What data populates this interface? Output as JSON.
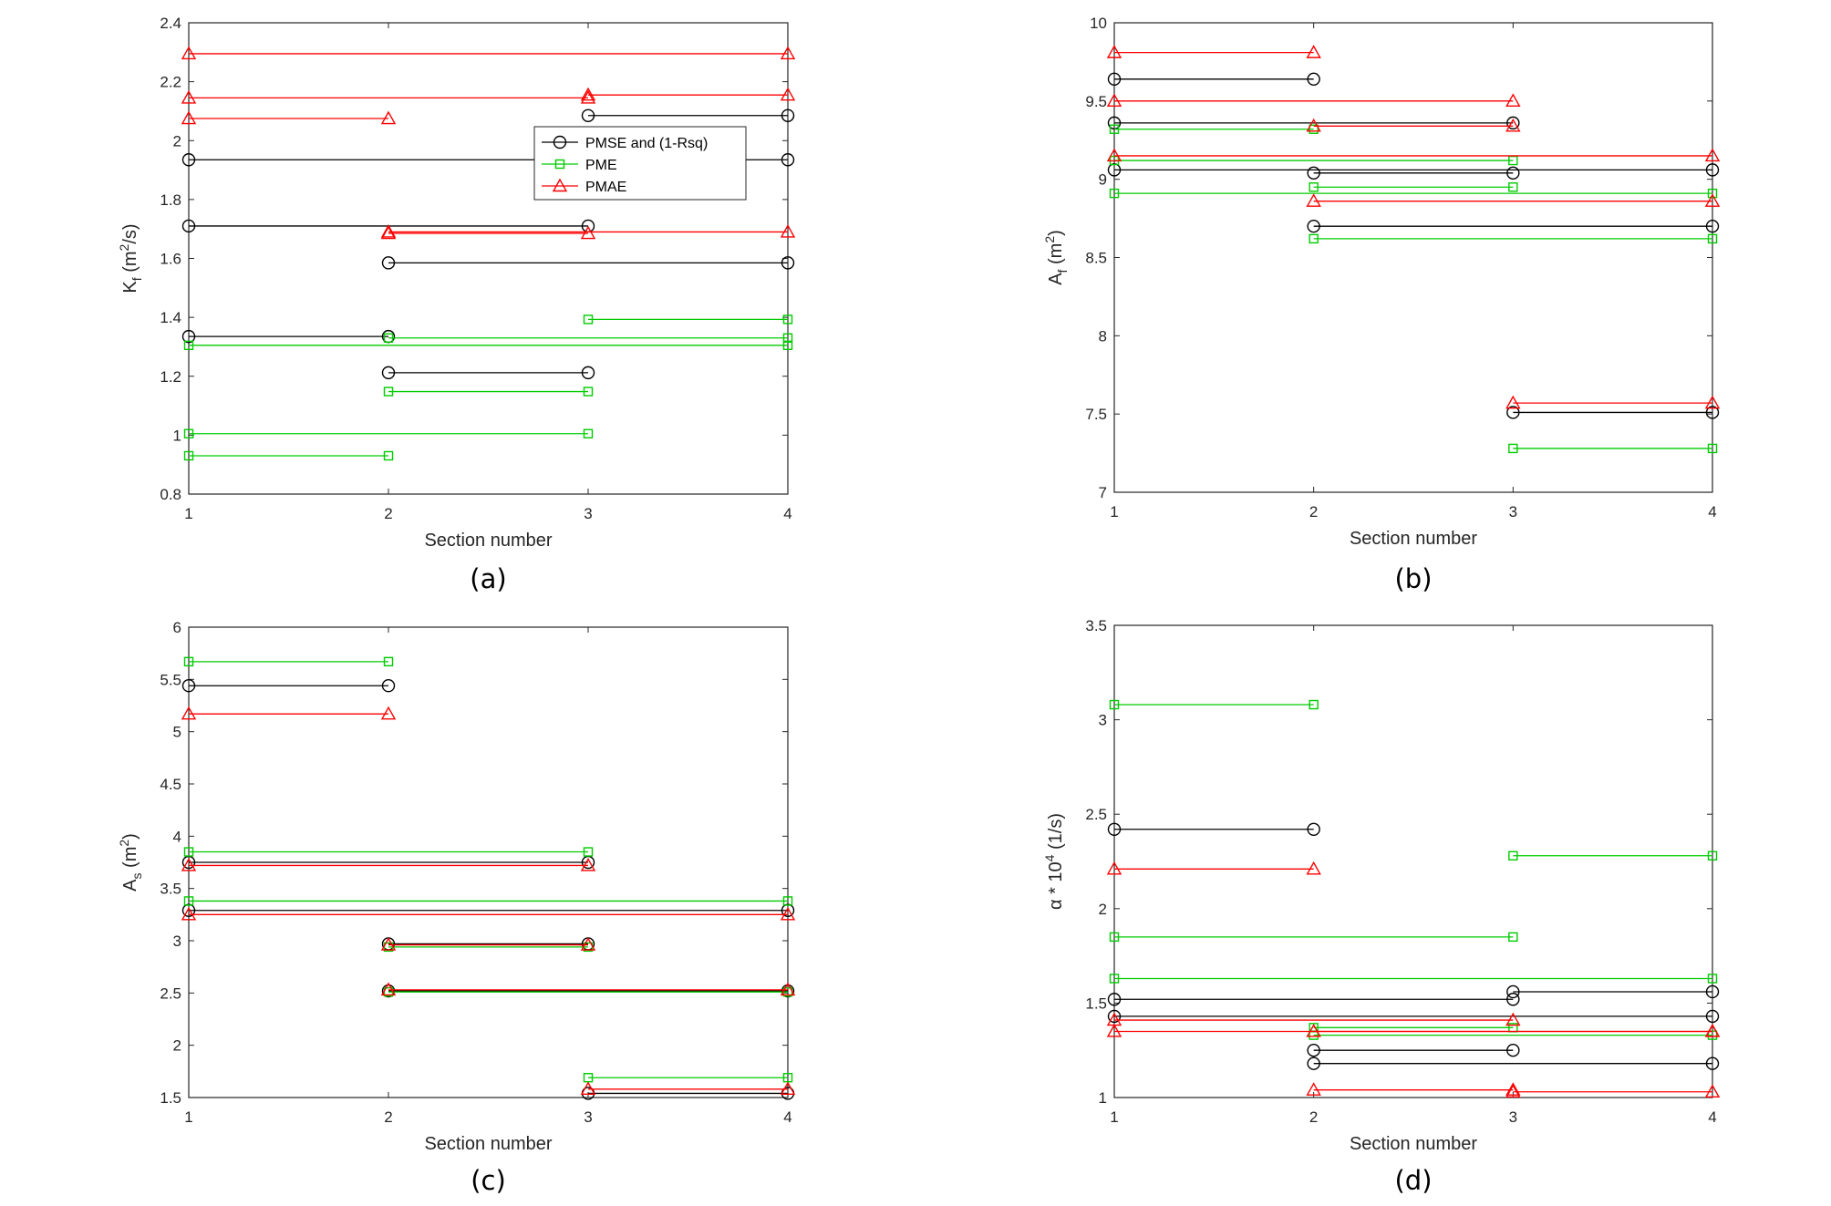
{
  "chart_data": [
    {
      "type": "line",
      "panel": "a",
      "caption": "(a)",
      "xlabel": "Section number",
      "ylabel": "K_f (m^2/s)",
      "ylabel_base": "K",
      "ylabel_sub": "f",
      "ylabel_mid": " (m",
      "ylabel_sup": "2",
      "ylabel_tail": "/s)",
      "xlim": [
        1,
        4
      ],
      "ylim": [
        0.8,
        2.4
      ],
      "xticks": [
        "1",
        "2",
        "3",
        "4"
      ],
      "yticks": [
        "0.8",
        "1",
        "1.2",
        "1.4",
        "1.6",
        "1.8",
        "2",
        "2.2",
        "2.4"
      ],
      "legend": [
        {
          "name": "PMSE and (1-Rsq)",
          "marker": "circle",
          "color": "#000000"
        },
        {
          "name": "PME",
          "marker": "square",
          "color": "#00cc00"
        },
        {
          "name": "PMAE",
          "marker": "triangle",
          "color": "#ff0000"
        }
      ],
      "series": [
        {
          "name": "PMSE and (1-Rsq)",
          "color": "#000000",
          "marker": "circle",
          "segments": [
            [
              1,
              4,
              1.935
            ],
            [
              1,
              3,
              1.71
            ],
            [
              1,
              2,
              1.335
            ],
            [
              2,
              4,
              1.585
            ],
            [
              2,
              3,
              1.212
            ],
            [
              3,
              4,
              2.085
            ]
          ]
        },
        {
          "name": "PME",
          "color": "#00cc00",
          "marker": "square",
          "segments": [
            [
              1,
              4,
              1.305
            ],
            [
              1,
              3,
              1.005
            ],
            [
              1,
              2,
              0.93
            ],
            [
              2,
              4,
              1.33
            ],
            [
              2,
              3,
              1.148
            ],
            [
              3,
              4,
              1.393
            ]
          ]
        },
        {
          "name": "PMAE",
          "color": "#ff0000",
          "marker": "triangle",
          "segments": [
            [
              1,
              4,
              2.295
            ],
            [
              1,
              3,
              2.145
            ],
            [
              1,
              2,
              2.075
            ],
            [
              2,
              4,
              1.69
            ],
            [
              2,
              3,
              1.685
            ],
            [
              3,
              4,
              2.155
            ]
          ]
        }
      ]
    },
    {
      "type": "line",
      "panel": "b",
      "caption": "(b)",
      "xlabel": "Section number",
      "ylabel": "A_f (m^2)",
      "ylabel_base": "A",
      "ylabel_sub": "f",
      "ylabel_mid": " (m",
      "ylabel_sup": "2",
      "ylabel_tail": ")",
      "xlim": [
        1,
        4
      ],
      "ylim": [
        7,
        10
      ],
      "xticks": [
        "1",
        "2",
        "3",
        "4"
      ],
      "yticks": [
        "7",
        "7.5",
        "8",
        "8.5",
        "9",
        "9.5",
        "10"
      ],
      "series": [
        {
          "name": "PMSE and (1-Rsq)",
          "color": "#000000",
          "marker": "circle",
          "segments": [
            [
              1,
              2,
              9.64
            ],
            [
              1,
              3,
              9.36
            ],
            [
              1,
              4,
              9.06
            ],
            [
              2,
              3,
              9.04
            ],
            [
              2,
              4,
              8.7
            ],
            [
              3,
              4,
              7.51
            ]
          ]
        },
        {
          "name": "PME",
          "color": "#00cc00",
          "marker": "square",
          "segments": [
            [
              1,
              2,
              9.32
            ],
            [
              1,
              4,
              8.91
            ],
            [
              1,
              3,
              9.12
            ],
            [
              2,
              3,
              8.95
            ],
            [
              2,
              4,
              8.62
            ],
            [
              3,
              4,
              7.28
            ]
          ]
        },
        {
          "name": "PMAE",
          "color": "#ff0000",
          "marker": "triangle",
          "segments": [
            [
              1,
              2,
              9.81
            ],
            [
              1,
              3,
              9.5
            ],
            [
              1,
              4,
              9.15
            ],
            [
              2,
              3,
              9.34
            ],
            [
              2,
              4,
              8.86
            ],
            [
              3,
              4,
              7.57
            ]
          ]
        }
      ]
    },
    {
      "type": "line",
      "panel": "c",
      "caption": "(c)",
      "xlabel": "Section number",
      "ylabel": "A_s (m^2)",
      "ylabel_base": "A",
      "ylabel_sub": "s",
      "ylabel_mid": " (m",
      "ylabel_sup": "2",
      "ylabel_tail": ")",
      "xlim": [
        1,
        4
      ],
      "ylim": [
        1.5,
        6
      ],
      "xticks": [
        "1",
        "2",
        "3",
        "4"
      ],
      "yticks": [
        "1.5",
        "2",
        "2.5",
        "3",
        "3.5",
        "4",
        "4.5",
        "5",
        "5.5",
        "6"
      ],
      "series": [
        {
          "name": "PMSE and (1-Rsq)",
          "color": "#000000",
          "marker": "circle",
          "segments": [
            [
              1,
              2,
              5.44
            ],
            [
              1,
              3,
              3.75
            ],
            [
              1,
              4,
              3.29
            ],
            [
              2,
              3,
              2.97
            ],
            [
              2,
              4,
              2.52
            ],
            [
              3,
              4,
              1.54
            ]
          ]
        },
        {
          "name": "PME",
          "color": "#00cc00",
          "marker": "square",
          "segments": [
            [
              1,
              2,
              5.67
            ],
            [
              1,
              3,
              3.85
            ],
            [
              1,
              4,
              3.38
            ],
            [
              2,
              3,
              2.94
            ],
            [
              2,
              4,
              2.51
            ],
            [
              3,
              4,
              1.69
            ]
          ]
        },
        {
          "name": "PMAE",
          "color": "#ff0000",
          "marker": "triangle",
          "segments": [
            [
              1,
              2,
              5.17
            ],
            [
              1,
              3,
              3.72
            ],
            [
              1,
              4,
              3.25
            ],
            [
              2,
              3,
              2.96
            ],
            [
              2,
              4,
              2.53
            ],
            [
              3,
              4,
              1.58
            ]
          ]
        }
      ]
    },
    {
      "type": "line",
      "panel": "d",
      "caption": "(d)",
      "xlabel": "Section number",
      "ylabel": "α * 10^4 (1/s)",
      "ylabel_base": "α * 10",
      "ylabel_sub": "",
      "ylabel_mid": "",
      "ylabel_sup": "4",
      "ylabel_tail": " (1/s)",
      "xlim": [
        1,
        4
      ],
      "ylim": [
        1,
        3.5
      ],
      "xticks": [
        "1",
        "2",
        "3",
        "4"
      ],
      "yticks": [
        "1",
        "1.5",
        "2",
        "2.5",
        "3",
        "3.5"
      ],
      "series": [
        {
          "name": "PMSE and (1-Rsq)",
          "color": "#000000",
          "marker": "circle",
          "segments": [
            [
              1,
              2,
              2.42
            ],
            [
              1,
              3,
              1.52
            ],
            [
              1,
              4,
              1.43
            ],
            [
              2,
              3,
              1.25
            ],
            [
              2,
              4,
              1.18
            ],
            [
              3,
              4,
              1.56
            ]
          ]
        },
        {
          "name": "PME",
          "color": "#00cc00",
          "marker": "square",
          "segments": [
            [
              1,
              2,
              3.08
            ],
            [
              1,
              3,
              1.85
            ],
            [
              1,
              4,
              1.63
            ],
            [
              2,
              3,
              1.37
            ],
            [
              2,
              4,
              1.33
            ],
            [
              3,
              4,
              2.28
            ]
          ]
        },
        {
          "name": "PMAE",
          "color": "#ff0000",
          "marker": "triangle",
          "segments": [
            [
              1,
              2,
              2.21
            ],
            [
              1,
              4,
              1.35
            ],
            [
              1,
              3,
              1.41
            ],
            [
              2,
              3,
              1.04
            ],
            [
              2,
              4,
              1.35
            ],
            [
              3,
              4,
              1.03
            ]
          ]
        }
      ]
    }
  ]
}
